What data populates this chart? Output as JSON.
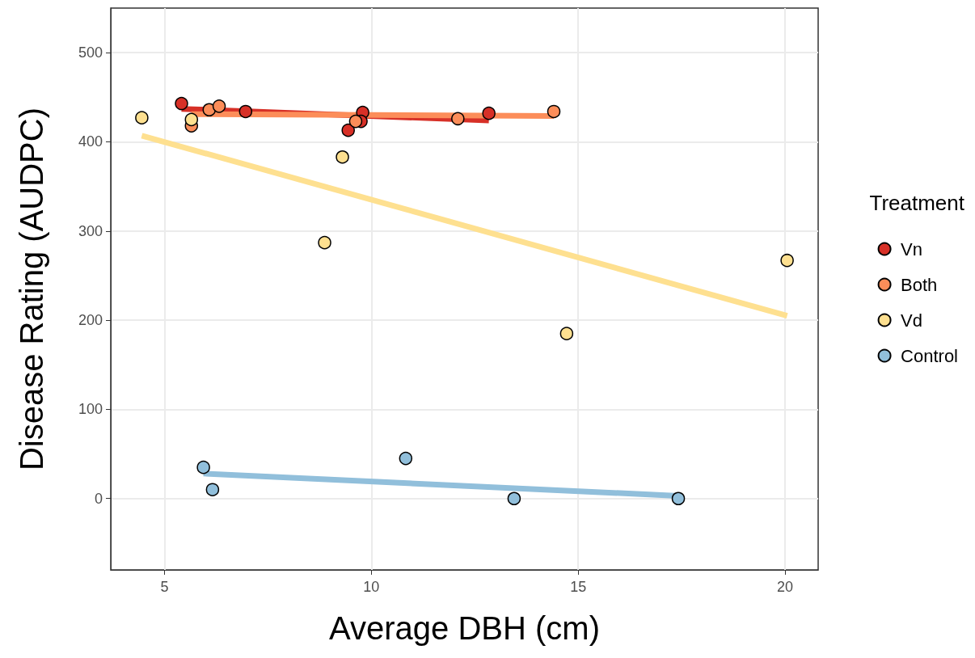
{
  "chart_data": {
    "type": "scatter",
    "xlabel": "Average DBH (cm)",
    "ylabel": "Disease Rating (AUDPC)",
    "legend_title": "Treatment",
    "legend": "right",
    "grid": true,
    "marker": "circle",
    "xlim": [
      3.7,
      20.8
    ],
    "xticks": [
      5,
      10,
      15,
      20
    ],
    "ylim": [
      -80,
      550
    ],
    "yticks": [
      0,
      100,
      200,
      300,
      400,
      500
    ],
    "series": [
      {
        "name": "Vn",
        "color": "#d73027",
        "x": [
          5.41,
          6.96,
          9.44,
          9.79,
          9.75,
          12.84
        ],
        "values": [
          443,
          434,
          413,
          433,
          423,
          432
        ]
      },
      {
        "name": "Both",
        "color": "#fc8d59",
        "x": [
          6.08,
          6.32,
          5.65,
          9.62,
          12.09,
          14.41
        ],
        "values": [
          436,
          440,
          418,
          423,
          426,
          434
        ]
      },
      {
        "name": "Vd",
        "color": "#fee090",
        "x": [
          4.45,
          5.65,
          9.3,
          8.87,
          14.72,
          20.05
        ],
        "values": [
          427,
          425,
          383,
          287,
          185,
          267
        ]
      },
      {
        "name": "Control",
        "color": "#91bfdb",
        "x": [
          5.94,
          6.16,
          10.83,
          13.45,
          17.42
        ],
        "values": [
          35,
          10,
          45,
          0,
          0
        ]
      },
      {
        "type": "line",
        "marker": "none",
        "color": "#d73027",
        "x": [
          5.41,
          12.84
        ],
        "values": [
          437,
          424
        ]
      },
      {
        "type": "line",
        "marker": "none",
        "color": "#fc8d59",
        "x": [
          5.65,
          14.41
        ],
        "values": [
          431,
          429
        ]
      },
      {
        "type": "line",
        "marker": "none",
        "color": "#fee090",
        "x": [
          4.45,
          20.05
        ],
        "values": [
          407,
          205
        ]
      },
      {
        "type": "line",
        "marker": "none",
        "color": "#91bfdb",
        "x": [
          5.94,
          17.42
        ],
        "values": [
          28,
          3
        ]
      }
    ]
  }
}
